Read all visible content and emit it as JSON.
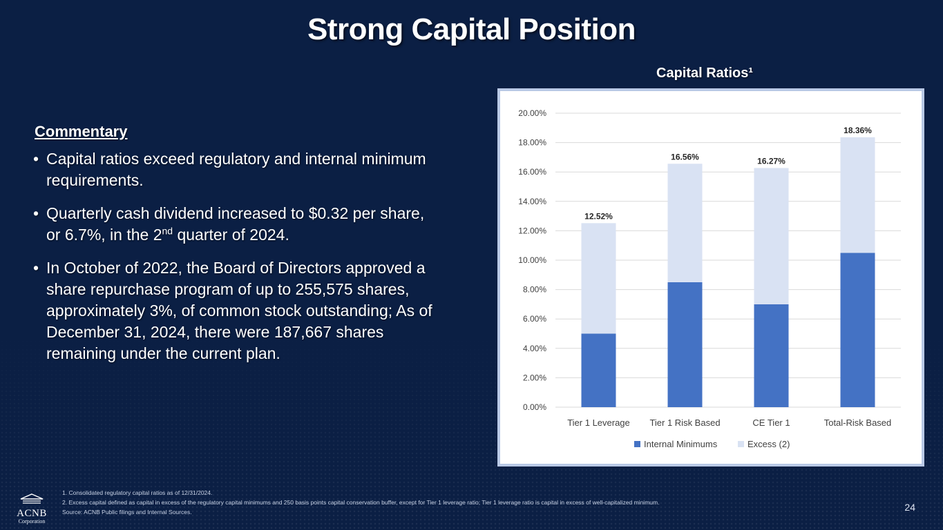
{
  "slide": {
    "title": "Strong Capital Position",
    "page_number": "24"
  },
  "commentary": {
    "heading": "Commentary",
    "bullets": [
      {
        "text": "Capital ratios exceed regulatory and internal minimum requirements."
      },
      {
        "before": "Quarterly cash dividend increased to $0.32 per share, or 6.7%, in the 2",
        "sup": "nd",
        "after": " quarter of 2024."
      },
      {
        "text": "In October of 2022, the Board of Directors approved a share repurchase program of up to 255,575 shares, approximately 3%, of common stock outstanding; As of December 31, 2024, there were 187,667 shares remaining under the current plan."
      }
    ]
  },
  "chart_data": {
    "type": "bar",
    "stacked": true,
    "title": "Capital Ratios¹",
    "categories": [
      "Tier 1 Leverage",
      "Tier 1 Risk Based",
      "CE Tier 1",
      "Total-Risk Based"
    ],
    "series": [
      {
        "name": "Internal Minimums",
        "color": "#4472c4",
        "values": [
          5.0,
          8.5,
          7.0,
          10.5
        ]
      },
      {
        "name": "Excess  (2)",
        "color": "#d9e2f3",
        "values": [
          7.52,
          8.06,
          9.27,
          7.86
        ]
      }
    ],
    "totals": [
      12.52,
      16.56,
      16.27,
      18.36
    ],
    "total_labels": [
      "12.52%",
      "16.56%",
      "16.27%",
      "18.36%"
    ],
    "ylim": [
      0,
      20
    ],
    "yticks": [
      0,
      2,
      4,
      6,
      8,
      10,
      12,
      14,
      16,
      18,
      20
    ],
    "ytick_labels": [
      "0.00%",
      "2.00%",
      "4.00%",
      "6.00%",
      "8.00%",
      "10.00%",
      "12.00%",
      "14.00%",
      "16.00%",
      "18.00%",
      "20.00%"
    ],
    "legend_position": "bottom",
    "grid": true
  },
  "footnotes": [
    "1. Consolidated regulatory capital ratios as of 12/31/2024.",
    "2. Excess capital defined as capital in excess of the regulatory capital minimums and 250 basis points capital conservation buffer, except for Tier 1 leverage ratio; Tier 1 leverage ratio is capital in excess of well-capitalized minimum.",
    "Source:  ACNB Public filings and Internal Sources."
  ],
  "logo": {
    "name": "ACNB",
    "sub": "Corporation"
  }
}
